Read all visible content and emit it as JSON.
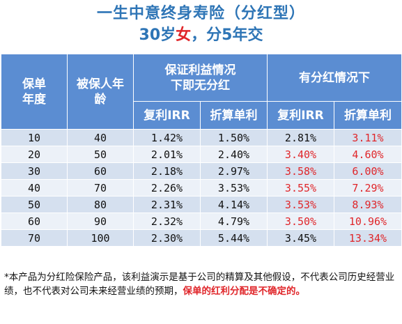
{
  "title": {
    "line1": "一生中意终身寿险（分红型）",
    "line2_pre": "30岁",
    "line2_highlight": "女",
    "line2_post": "，分5年交"
  },
  "table": {
    "headers": {
      "policy_year": "保单年度",
      "insured_age": "被保人年龄",
      "guaranteed_group": "保证利益情况下即无分红",
      "dividend_group": "有分红情况下",
      "compound_irr": "复利IRR",
      "simple_rate": "折算单利",
      "compound_irr_2": "复利IRR",
      "simple_rate_2": "折算单利"
    },
    "rows": [
      {
        "year": "10",
        "age": "40",
        "g_irr": "1.42%",
        "g_simple": "1.50%",
        "d_irr": "2.81%",
        "d_simple": "3.11%"
      },
      {
        "year": "20",
        "age": "50",
        "g_irr": "2.01%",
        "g_simple": "2.40%",
        "d_irr": "3.40%",
        "d_simple": "4.60%"
      },
      {
        "year": "30",
        "age": "60",
        "g_irr": "2.18%",
        "g_simple": "2.97%",
        "d_irr": "3.58%",
        "d_simple": "6.00%"
      },
      {
        "year": "40",
        "age": "70",
        "g_irr": "2.26%",
        "g_simple": "3.53%",
        "d_irr": "3.55%",
        "d_simple": "7.29%"
      },
      {
        "year": "50",
        "age": "80",
        "g_irr": "2.31%",
        "g_simple": "4.14%",
        "d_irr": "3.53%",
        "d_simple": "8.93%"
      },
      {
        "year": "60",
        "age": "90",
        "g_irr": "2.32%",
        "g_simple": "4.79%",
        "d_irr": "3.50%",
        "d_simple": "10.96%"
      },
      {
        "year": "70",
        "age": "100",
        "g_irr": "2.30%",
        "g_simple": "5.44%",
        "d_irr": "3.45%",
        "d_simple": "13.34%"
      }
    ],
    "red_d_irr_rows": [
      1,
      2,
      3,
      4,
      5
    ]
  },
  "footnote": {
    "normal": "*本产品为分红险保险产品，该利益演示是基于公司的精算及其他假设，不代表公司历史经营业绩，也不代表对公司未来经营业绩的预期，",
    "warning": "保单的红利分配是不确定的。"
  },
  "colors": {
    "title_blue": "#2e75b6",
    "header_blue": "#5b8dd2",
    "row_light": "#ecf1f8",
    "row_dark": "#d5e0ef",
    "red": "#e0262a"
  }
}
